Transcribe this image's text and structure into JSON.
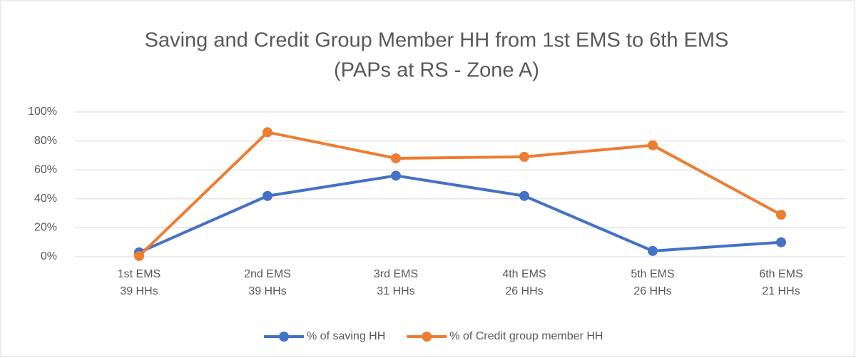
{
  "chart_data": {
    "type": "line",
    "title": "Saving and Credit Group Member HH from 1st EMS to 6th EMS",
    "subtitle": "(PAPs at RS - Zone A)",
    "categories": [
      [
        "1st EMS",
        "39 HHs"
      ],
      [
        "2nd EMS",
        "39 HHs"
      ],
      [
        "3rd EMS",
        "31 HHs"
      ],
      [
        "4th EMS",
        "26 HHs"
      ],
      [
        "5th EMS",
        "26 HHs"
      ],
      [
        "6th EMS",
        "21 HHs"
      ]
    ],
    "series": [
      {
        "name": "% of saving HH",
        "color": "#4472c4",
        "values": [
          3,
          42,
          56,
          42,
          4,
          10
        ]
      },
      {
        "name": "% of Credit group member HH",
        "color": "#ed7d31",
        "values": [
          0.5,
          86,
          68,
          69,
          77,
          29
        ]
      }
    ],
    "ylim": [
      0,
      100
    ],
    "yticks": [
      {
        "value": 0,
        "label": "0%"
      },
      {
        "value": 20,
        "label": "20%"
      },
      {
        "value": 40,
        "label": "40%"
      },
      {
        "value": 60,
        "label": "60%"
      },
      {
        "value": 80,
        "label": "80%"
      },
      {
        "value": 100,
        "label": "100%"
      }
    ],
    "grid": true,
    "legend": "bottom"
  }
}
